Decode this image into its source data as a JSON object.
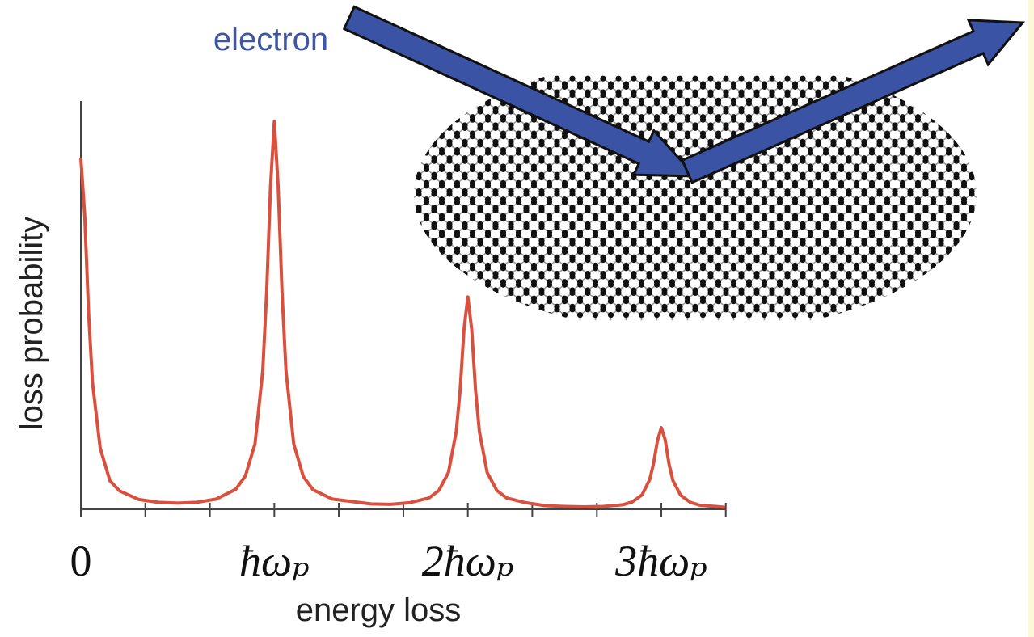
{
  "chart_data": {
    "type": "line",
    "annotation": "electron",
    "xlabel": "energy loss",
    "ylabel": "loss probability",
    "color": "#d9503f",
    "x": [
      0,
      0.02,
      0.04,
      0.06,
      0.1,
      0.15,
      0.2,
      0.3,
      0.4,
      0.5,
      0.6,
      0.7,
      0.8,
      0.85,
      0.9,
      0.94,
      0.96,
      0.98,
      1,
      1.02,
      1.04,
      1.06,
      1.1,
      1.15,
      1.2,
      1.3,
      1.4,
      1.5,
      1.6,
      1.7,
      1.8,
      1.85,
      1.9,
      1.94,
      1.96,
      1.98,
      2,
      2.02,
      2.04,
      2.06,
      2.1,
      2.15,
      2.2,
      2.3,
      2.4,
      2.5,
      2.6,
      2.7,
      2.8,
      2.85,
      2.9,
      2.94,
      2.96,
      2.98,
      3,
      3.02,
      3.04,
      3.06,
      3.1,
      3.15,
      3.2,
      3.33
    ],
    "values": [
      0.86,
      0.72,
      0.48,
      0.31,
      0.15,
      0.07,
      0.045,
      0.024,
      0.017,
      0.015,
      0.017,
      0.025,
      0.049,
      0.081,
      0.16,
      0.34,
      0.53,
      0.79,
      0.95,
      0.79,
      0.53,
      0.34,
      0.16,
      0.08,
      0.048,
      0.025,
      0.019,
      0.013,
      0.012,
      0.016,
      0.028,
      0.046,
      0.09,
      0.19,
      0.29,
      0.44,
      0.52,
      0.44,
      0.29,
      0.19,
      0.09,
      0.046,
      0.028,
      0.016,
      0.009,
      0.007,
      0.006,
      0.007,
      0.011,
      0.018,
      0.035,
      0.073,
      0.112,
      0.168,
      0.2,
      0.17,
      0.11,
      0.07,
      0.034,
      0.017,
      0.01,
      0.005
    ],
    "xlim": [
      0,
      3.33
    ],
    "ylim": [
      0,
      1
    ],
    "xticks": [
      0,
      {
        "value": 1,
        "label": "ħωₚ"
      },
      {
        "value": 2,
        "label": "2ħωₚ"
      },
      {
        "value": 3,
        "label": "3ħωₚ"
      }
    ],
    "minor_xticks": [
      0.333,
      0.667,
      1.333,
      1.667,
      2.333,
      2.667,
      3.333
    ]
  }
}
